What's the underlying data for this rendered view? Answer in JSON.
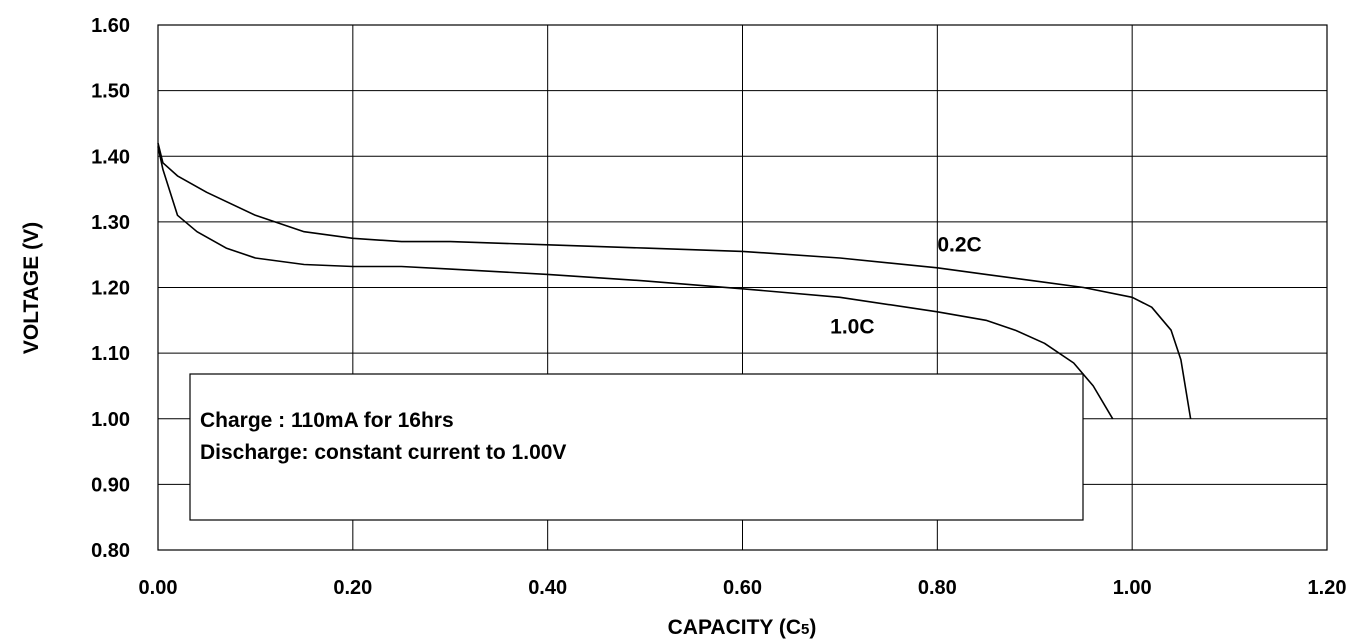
{
  "chart_data": {
    "type": "line",
    "title": "",
    "xlabel": "CAPACITY (C",
    "xlabel_subscript": "5",
    "xlabel_suffix": ")",
    "ylabel": "VOLTAGE (V)",
    "xlim": [
      0,
      1.2
    ],
    "ylim": [
      0.8,
      1.6
    ],
    "xticks": [
      "0.00",
      "0.20",
      "0.40",
      "0.60",
      "0.80",
      "1.00",
      "1.20"
    ],
    "yticks": [
      "0.80",
      "0.90",
      "1.00",
      "1.10",
      "1.20",
      "1.30",
      "1.40",
      "1.50",
      "1.60"
    ],
    "grid": true,
    "series": [
      {
        "name": "0.2C",
        "label_at": [
          0.8,
          1.255
        ],
        "points": [
          [
            0,
            1.42
          ],
          [
            0.005,
            1.39
          ],
          [
            0.02,
            1.37
          ],
          [
            0.05,
            1.345
          ],
          [
            0.1,
            1.31
          ],
          [
            0.15,
            1.285
          ],
          [
            0.2,
            1.275
          ],
          [
            0.25,
            1.27
          ],
          [
            0.3,
            1.27
          ],
          [
            0.4,
            1.265
          ],
          [
            0.5,
            1.26
          ],
          [
            0.6,
            1.255
          ],
          [
            0.7,
            1.245
          ],
          [
            0.8,
            1.23
          ],
          [
            0.85,
            1.22
          ],
          [
            0.9,
            1.21
          ],
          [
            0.95,
            1.2
          ],
          [
            1.0,
            1.185
          ],
          [
            1.02,
            1.17
          ],
          [
            1.04,
            1.135
          ],
          [
            1.05,
            1.09
          ],
          [
            1.06,
            1.0
          ]
        ]
      },
      {
        "name": "1.0C",
        "label_at": [
          0.69,
          1.13
        ],
        "points": [
          [
            0,
            1.415
          ],
          [
            0.005,
            1.38
          ],
          [
            0.02,
            1.31
          ],
          [
            0.04,
            1.285
          ],
          [
            0.07,
            1.26
          ],
          [
            0.1,
            1.245
          ],
          [
            0.15,
            1.235
          ],
          [
            0.2,
            1.232
          ],
          [
            0.25,
            1.232
          ],
          [
            0.3,
            1.228
          ],
          [
            0.4,
            1.22
          ],
          [
            0.5,
            1.21
          ],
          [
            0.6,
            1.198
          ],
          [
            0.7,
            1.185
          ],
          [
            0.8,
            1.163
          ],
          [
            0.85,
            1.15
          ],
          [
            0.88,
            1.135
          ],
          [
            0.91,
            1.115
          ],
          [
            0.94,
            1.085
          ],
          [
            0.96,
            1.05
          ],
          [
            0.98,
            1.0
          ]
        ]
      }
    ],
    "annotation": {
      "lines": [
        "Charge : 110mA for 16hrs",
        "Discharge: constant current to 1.00V"
      ]
    }
  }
}
